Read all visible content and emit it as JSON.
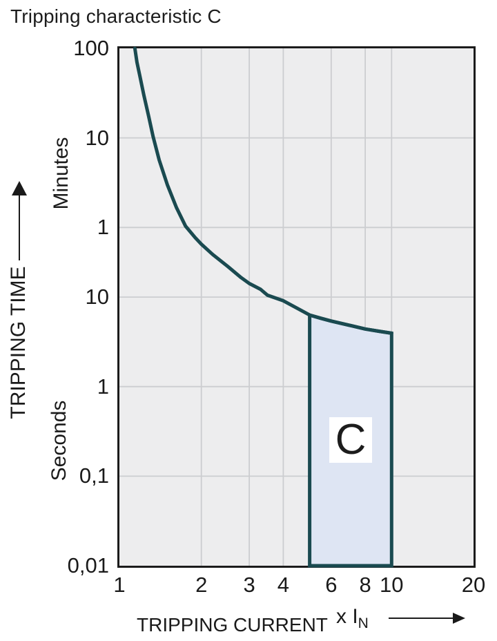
{
  "title": "Tripping characteristic C",
  "colors": {
    "curve": "#1a4a50",
    "region_fill": "#dee5f3",
    "region_label_bg": "#ffffff",
    "plot_background": "#ededee",
    "gridline": "#cccdd0",
    "axis_border": "#1b1b1b",
    "text": "#1a1a1a"
  },
  "y_axis": {
    "title": "TRIPPING TIME",
    "unit_top": "Minutes",
    "unit_bottom": "Seconds",
    "ticks": [
      {
        "label": "100",
        "seconds": 6000
      },
      {
        "label": "10",
        "seconds": 600
      },
      {
        "label": "1",
        "seconds": 60
      },
      {
        "label": "10",
        "seconds": 10
      },
      {
        "label": "1",
        "seconds": 1
      },
      {
        "label": "0,1",
        "seconds": 0.1
      },
      {
        "label": "0,01",
        "seconds": 0.01
      }
    ]
  },
  "x_axis": {
    "title": "TRIPPING CURRENT",
    "unit_prefix": "x I",
    "unit_sub": "N",
    "ticks": [
      {
        "label": "1",
        "value": 1
      },
      {
        "label": "2",
        "value": 2
      },
      {
        "label": "3",
        "value": 3
      },
      {
        "label": "4",
        "value": 4
      },
      {
        "label": "6",
        "value": 6
      },
      {
        "label": "8",
        "value": 8
      },
      {
        "label": "10",
        "value": 10
      },
      {
        "label": "20",
        "value": 20
      }
    ]
  },
  "chart_data": {
    "type": "line",
    "title": "Tripping characteristic C",
    "xlabel": "TRIPPING CURRENT (x IN)",
    "ylabel": "TRIPPING TIME (minutes / seconds)",
    "x_scale": "log",
    "y_scale": "log",
    "xlim": [
      1,
      20
    ],
    "ylim_seconds": [
      0.01,
      6000
    ],
    "grid": true,
    "x_gridlines": [
      2,
      3,
      4,
      6,
      8,
      10
    ],
    "y_gridlines_seconds": [
      600,
      60,
      10,
      1,
      0.1
    ],
    "curve": {
      "name": "tripping-curve",
      "points_x_multiple_in_vs_seconds": [
        [
          1.14,
          6000
        ],
        [
          1.16,
          4200
        ],
        [
          1.19,
          2900
        ],
        [
          1.23,
          1800
        ],
        [
          1.28,
          1050
        ],
        [
          1.33,
          620
        ],
        [
          1.4,
          340
        ],
        [
          1.5,
          180
        ],
        [
          1.62,
          100
        ],
        [
          1.75,
          62
        ],
        [
          1.9,
          46
        ],
        [
          2.0,
          39
        ],
        [
          2.2,
          30
        ],
        [
          2.5,
          22
        ],
        [
          2.8,
          16.5
        ],
        [
          3.0,
          14.2
        ],
        [
          3.3,
          12.2
        ],
        [
          3.5,
          10.5
        ],
        [
          4.0,
          9.1
        ],
        [
          4.5,
          7.5
        ],
        [
          5.0,
          6.3
        ],
        [
          5.5,
          5.8
        ],
        [
          6.0,
          5.4
        ],
        [
          7.0,
          4.85
        ],
        [
          8.0,
          4.4
        ],
        [
          9.0,
          4.15
        ],
        [
          10.0,
          3.95
        ]
      ]
    },
    "region": {
      "label": "C",
      "x_range": [
        5,
        10
      ],
      "t_bottom_seconds": 0.01,
      "top_boundary": "tripping-curve"
    }
  }
}
